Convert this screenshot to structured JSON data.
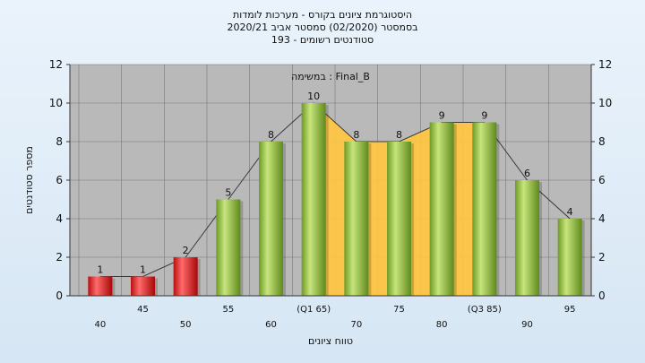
{
  "header": {
    "line1": "היסטוגרמת ציונים בקורס - מערכות לומדות",
    "line2": "בסמסטר  (02/2020)  סמסטר אביב 2020/21",
    "line3": "סטודנטים רשומים - 193"
  },
  "chart_data": {
    "type": "bar",
    "title": "היסטוגרמת ציונים בקורס - מערכות לומדות",
    "xlabel": "טווח ציונים",
    "ylabel": "מספר סטודנטים",
    "ylim": [
      0,
      12
    ],
    "yticks": [
      0,
      2,
      4,
      6,
      8,
      10,
      12
    ],
    "grid": true,
    "legend": "none",
    "annotation": "במשימה : Final_B",
    "categories": [
      "40",
      "45",
      "50",
      "55",
      "60",
      "(Q1 65)",
      "70",
      "75",
      "80",
      "(Q3 85)",
      "90",
      "95"
    ],
    "values": [
      1,
      1,
      2,
      5,
      8,
      10,
      8,
      8,
      9,
      9,
      6,
      4
    ],
    "bar_colors": [
      "red",
      "red",
      "red",
      "green",
      "green",
      "green",
      "green",
      "green",
      "green",
      "green",
      "green",
      "green"
    ],
    "interquartile_band": {
      "from": "(Q1 65)",
      "to": "(Q3 85)"
    },
    "colors": {
      "red": "#e02020",
      "green": "#8cbf3a",
      "band": "#ffc640",
      "plot_bg": "#b9b9b9",
      "grid": "#777777"
    }
  }
}
